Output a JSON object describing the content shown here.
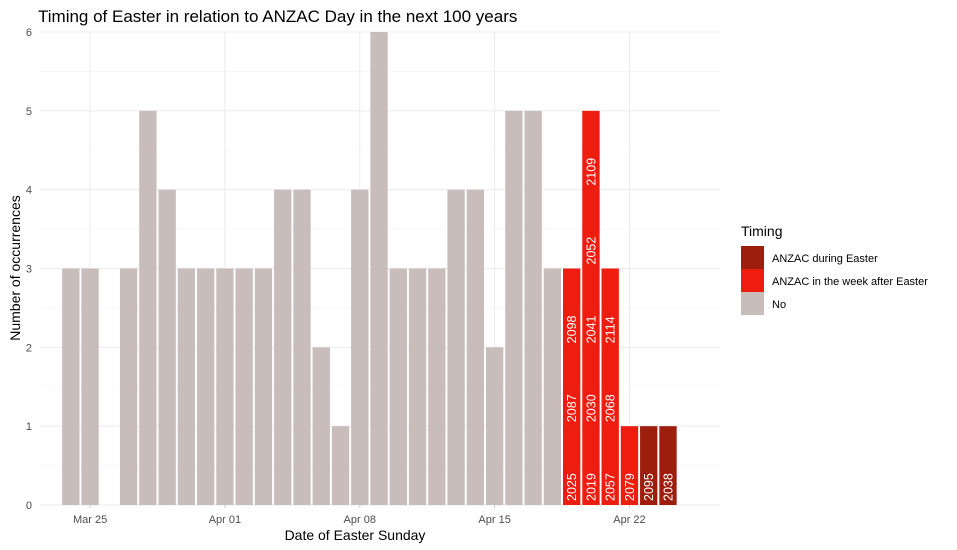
{
  "chart_data": {
    "type": "bar",
    "title": "Timing of Easter in relation to ANZAC Day in the next 100 years",
    "xlabel": "Date of Easter Sunday",
    "ylabel": "Number of occurrences",
    "ylim": [
      0,
      6
    ],
    "y_ticks": [
      "0",
      "1",
      "2",
      "3",
      "4",
      "5",
      "6"
    ],
    "x_ticks": [
      {
        "label": "Mar 25",
        "day": 25
      },
      {
        "label": "Apr 01",
        "day": 32
      },
      {
        "label": "Apr 08",
        "day": 39
      },
      {
        "label": "Apr 15",
        "day": 46
      },
      {
        "label": "Apr 22",
        "day": 53
      }
    ],
    "x_domain_days": [
      22.4,
      57.7
    ],
    "legend": {
      "title": "Timing",
      "position": "right",
      "entries": [
        {
          "key": "during",
          "label": "ANZAC during Easter",
          "color": "#9e1e0e"
        },
        {
          "key": "after",
          "label": "ANZAC in the week after Easter",
          "color": "#ef1d10"
        },
        {
          "key": "no",
          "label": "No",
          "color": "#c8bdbb"
        }
      ]
    },
    "grid": true,
    "bars": [
      {
        "date": "Mar 24",
        "day": 24,
        "value": 3,
        "category": "no",
        "years": []
      },
      {
        "date": "Mar 25",
        "day": 25,
        "value": 3,
        "category": "no",
        "years": []
      },
      {
        "date": "Mar 27",
        "day": 27,
        "value": 3,
        "category": "no",
        "years": []
      },
      {
        "date": "Mar 28",
        "day": 28,
        "value": 5,
        "category": "no",
        "years": []
      },
      {
        "date": "Mar 29",
        "day": 29,
        "value": 4,
        "category": "no",
        "years": []
      },
      {
        "date": "Mar 30",
        "day": 30,
        "value": 3,
        "category": "no",
        "years": []
      },
      {
        "date": "Mar 31",
        "day": 31,
        "value": 3,
        "category": "no",
        "years": []
      },
      {
        "date": "Apr 01",
        "day": 32,
        "value": 3,
        "category": "no",
        "years": []
      },
      {
        "date": "Apr 02",
        "day": 33,
        "value": 3,
        "category": "no",
        "years": []
      },
      {
        "date": "Apr 03",
        "day": 34,
        "value": 3,
        "category": "no",
        "years": []
      },
      {
        "date": "Apr 04",
        "day": 35,
        "value": 4,
        "category": "no",
        "years": []
      },
      {
        "date": "Apr 05",
        "day": 36,
        "value": 4,
        "category": "no",
        "years": []
      },
      {
        "date": "Apr 06",
        "day": 37,
        "value": 2,
        "category": "no",
        "years": []
      },
      {
        "date": "Apr 07",
        "day": 38,
        "value": 1,
        "category": "no",
        "years": []
      },
      {
        "date": "Apr 08",
        "day": 39,
        "value": 4,
        "category": "no",
        "years": []
      },
      {
        "date": "Apr 09",
        "day": 40,
        "value": 6,
        "category": "no",
        "years": []
      },
      {
        "date": "Apr 10",
        "day": 41,
        "value": 3,
        "category": "no",
        "years": []
      },
      {
        "date": "Apr 11",
        "day": 42,
        "value": 3,
        "category": "no",
        "years": []
      },
      {
        "date": "Apr 12",
        "day": 43,
        "value": 3,
        "category": "no",
        "years": []
      },
      {
        "date": "Apr 13",
        "day": 44,
        "value": 4,
        "category": "no",
        "years": []
      },
      {
        "date": "Apr 14",
        "day": 45,
        "value": 4,
        "category": "no",
        "years": []
      },
      {
        "date": "Apr 15",
        "day": 46,
        "value": 2,
        "category": "no",
        "years": []
      },
      {
        "date": "Apr 16",
        "day": 47,
        "value": 5,
        "category": "no",
        "years": []
      },
      {
        "date": "Apr 17",
        "day": 48,
        "value": 5,
        "category": "no",
        "years": []
      },
      {
        "date": "Apr 18",
        "day": 49,
        "value": 3,
        "category": "no",
        "years": []
      },
      {
        "date": "Apr 19",
        "day": 50,
        "value": 3,
        "category": "after",
        "years": [
          "2025",
          "2087",
          "2098"
        ]
      },
      {
        "date": "Apr 20",
        "day": 51,
        "value": 5,
        "category": "after",
        "years": [
          "2019",
          "2030",
          "2041",
          "2052",
          "2109"
        ]
      },
      {
        "date": "Apr 21",
        "day": 52,
        "value": 3,
        "category": "after",
        "years": [
          "2057",
          "2068",
          "2114"
        ]
      },
      {
        "date": "Apr 22",
        "day": 53,
        "value": 1,
        "category": "after",
        "years": [
          "2079"
        ]
      },
      {
        "date": "Apr 23",
        "day": 54,
        "value": 1,
        "category": "during",
        "years": [
          "2095"
        ]
      },
      {
        "date": "Apr 24",
        "day": 55,
        "value": 1,
        "category": "during",
        "years": [
          "2038"
        ]
      }
    ]
  }
}
